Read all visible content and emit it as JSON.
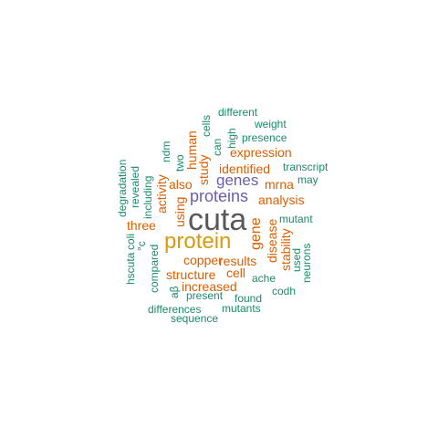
{
  "words": [
    {
      "text": "cuta",
      "color": "#595959"
    },
    {
      "text": "protein",
      "color": "#d89b10"
    },
    {
      "text": "proteins",
      "color": "#6a5ea8"
    },
    {
      "text": "genes",
      "color": "#6a5ea8"
    },
    {
      "text": "gene",
      "color": "#d95f02"
    },
    {
      "text": "analysis",
      "color": "#d95f02"
    },
    {
      "text": "expression",
      "color": "#d95f02"
    },
    {
      "text": "identified",
      "color": "#d95f02"
    },
    {
      "text": "mrna",
      "color": "#d95f02"
    },
    {
      "text": "also",
      "color": "#d95f02"
    },
    {
      "text": "study",
      "color": "#d95f02"
    },
    {
      "text": "human",
      "color": "#d95f02"
    },
    {
      "text": "using",
      "color": "#d95f02"
    },
    {
      "text": "activity",
      "color": "#d95f02"
    },
    {
      "text": "three",
      "color": "#d95f02"
    },
    {
      "text": "copper",
      "color": "#d95f02"
    },
    {
      "text": "results",
      "color": "#d95f02"
    },
    {
      "text": "structure",
      "color": "#d95f02"
    },
    {
      "text": "cell",
      "color": "#d95f02"
    },
    {
      "text": "increased",
      "color": "#d95f02"
    },
    {
      "text": "disease",
      "color": "#d95f02"
    },
    {
      "text": "stability",
      "color": "#d95f02"
    },
    {
      "text": "different",
      "color": "#1b8a6b"
    },
    {
      "text": "weight",
      "color": "#1b8a6b"
    },
    {
      "text": "presence",
      "color": "#1b8a6b"
    },
    {
      "text": "cells",
      "color": "#1b8a6b"
    },
    {
      "text": "high",
      "color": "#1b8a6b"
    },
    {
      "text": "can",
      "color": "#1b8a6b"
    },
    {
      "text": "two",
      "color": "#1b8a6b"
    },
    {
      "text": "ndm",
      "color": "#1b8a6b"
    },
    {
      "text": "transcript",
      "color": "#1b8a6b"
    },
    {
      "text": "may",
      "color": "#1b8a6b"
    },
    {
      "text": "degradation",
      "color": "#1b8a6b"
    },
    {
      "text": "revealed",
      "color": "#1b8a6b"
    },
    {
      "text": "including",
      "color": "#1b8a6b"
    },
    {
      "text": "mutant",
      "color": "#1b8a6b"
    },
    {
      "text": "coli",
      "color": "#1b8a6b"
    },
    {
      "text": "°c",
      "color": "#1b8a6b"
    },
    {
      "text": "hscuta",
      "color": "#1b8a6b"
    },
    {
      "text": "compared",
      "color": "#1b8a6b"
    },
    {
      "text": "used",
      "color": "#1b8a6b"
    },
    {
      "text": "neurons",
      "color": "#1b8a6b"
    },
    {
      "text": "ache",
      "color": "#1b8a6b"
    },
    {
      "text": "aβ",
      "color": "#1b8a6b"
    },
    {
      "text": "present",
      "color": "#1b8a6b"
    },
    {
      "text": "found",
      "color": "#1b8a6b"
    },
    {
      "text": "codh",
      "color": "#1b8a6b"
    },
    {
      "text": "differences",
      "color": "#1b8a6b"
    },
    {
      "text": "mutants",
      "color": "#1b8a6b"
    },
    {
      "text": "sequence",
      "color": "#1b8a6b"
    }
  ]
}
